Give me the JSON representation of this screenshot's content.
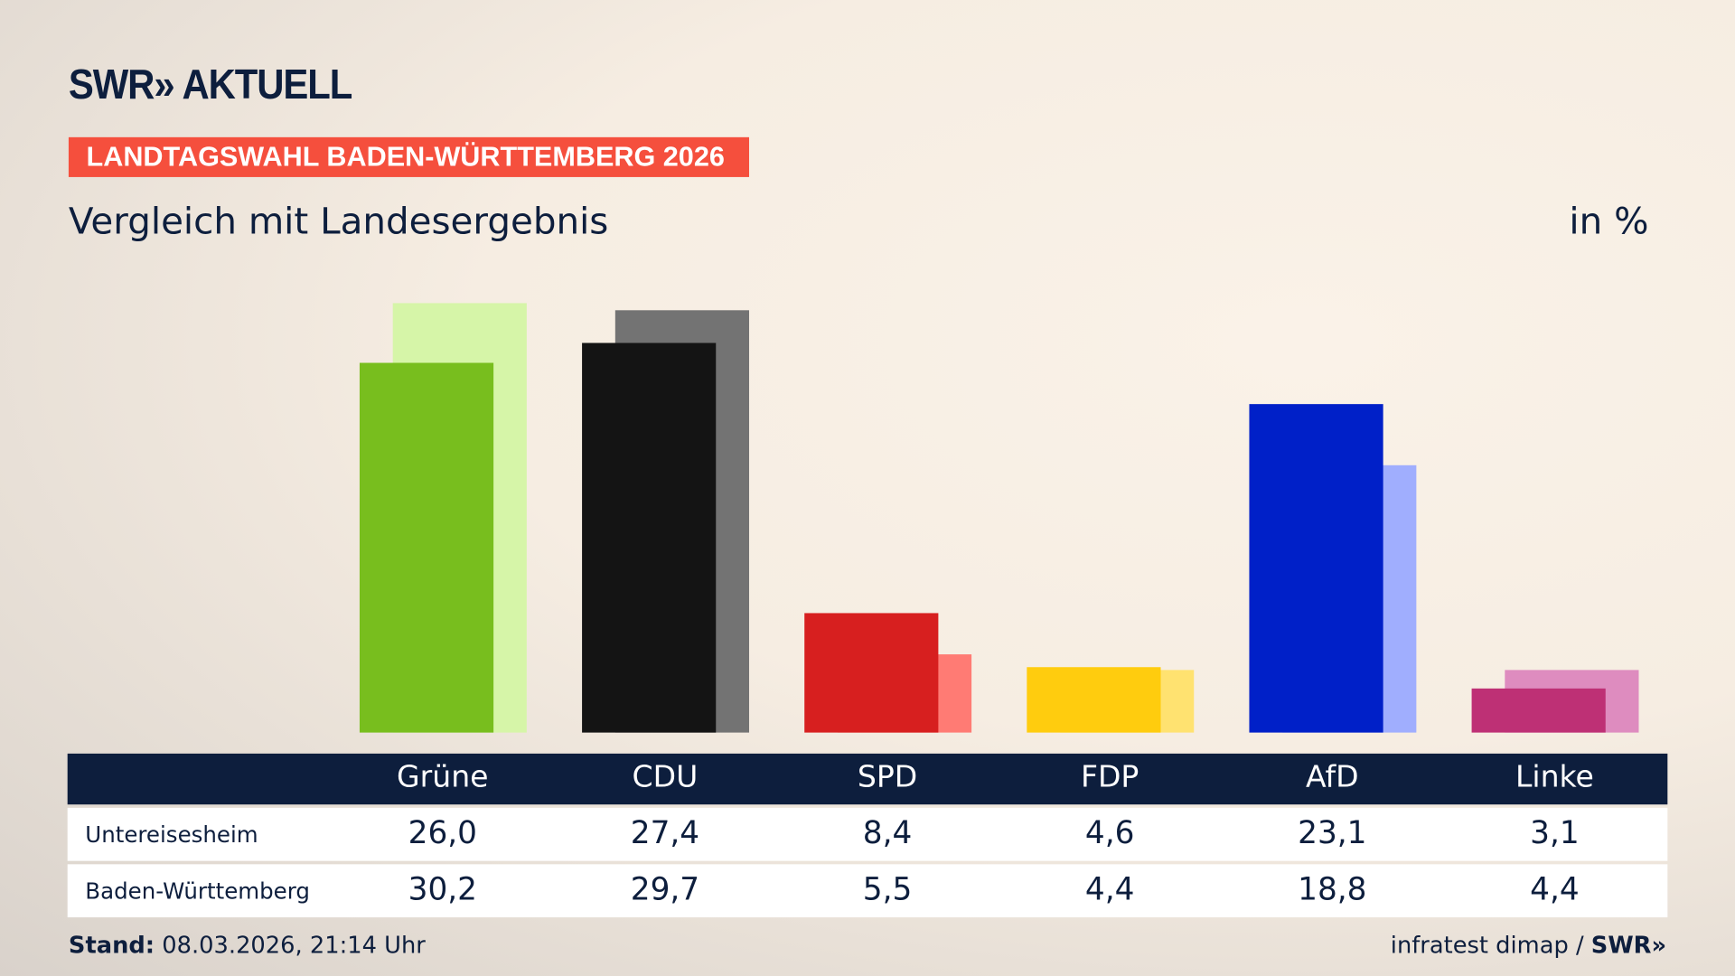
{
  "header": {
    "logo": "SWR» AKTUELL",
    "banner": "LANDTAGSWAHL BADEN-WÜRTTEMBERG 2026",
    "subtitle": "Vergleich mit Landesergebnis",
    "unit": "in %"
  },
  "chart_data": {
    "type": "bar",
    "title": "Vergleich mit Landesergebnis",
    "ylabel": "in %",
    "ylim": [
      0,
      32
    ],
    "categories": [
      "Grüne",
      "CDU",
      "SPD",
      "FDP",
      "AfD",
      "Linke"
    ],
    "series": [
      {
        "name": "Untereisesheim",
        "values": [
          26.0,
          27.4,
          8.4,
          4.6,
          23.1,
          3.1
        ],
        "labels": [
          "26,0",
          "27,4",
          "8,4",
          "4,6",
          "23,1",
          "3,1"
        ],
        "colors": [
          "#78be1e",
          "#141414",
          "#d71f1f",
          "#ffcc0e",
          "#0020c8",
          "#be3075"
        ]
      },
      {
        "name": "Baden-Württemberg",
        "values": [
          30.2,
          29.7,
          5.5,
          4.4,
          18.8,
          4.4
        ],
        "labels": [
          "30,2",
          "29,7",
          "5,5",
          "4,4",
          "18,8",
          "4,4"
        ],
        "colors": [
          "#d6f5a8",
          "#737373",
          "#ff7b74",
          "#ffe270",
          "#a0aefe",
          "#de8cbf"
        ]
      }
    ]
  },
  "footer": {
    "stand_label": "Stand:",
    "stand_value": "08.03.2026, 21:14 Uhr",
    "source": "infratest dimap / ",
    "source_logo": "SWR»"
  }
}
